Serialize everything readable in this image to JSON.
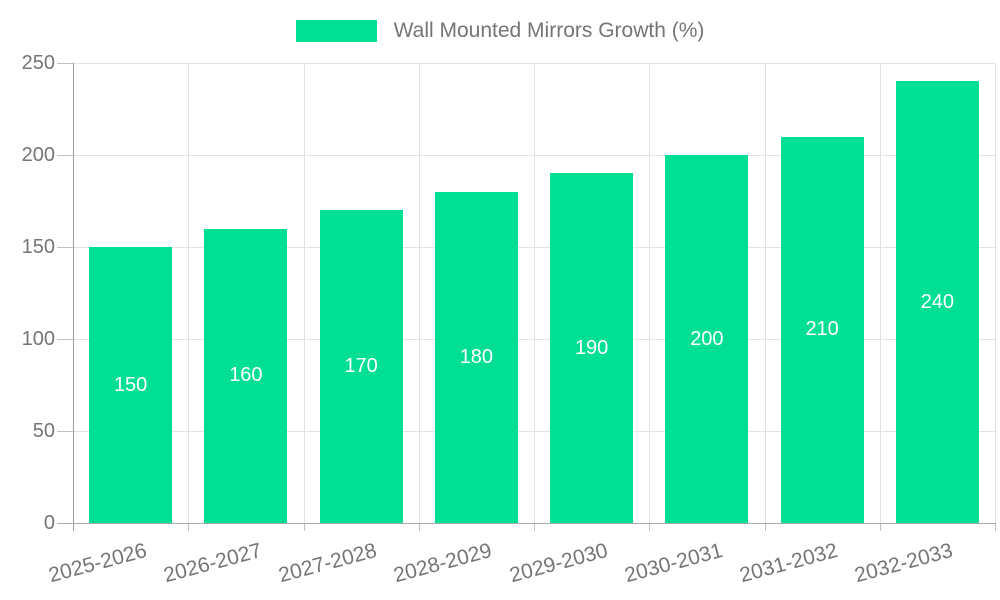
{
  "legend": {
    "label": "Wall Mounted Mirrors Growth (%)"
  },
  "chart_data": {
    "type": "bar",
    "title": "",
    "xlabel": "",
    "ylabel": "",
    "categories": [
      "2025-2026",
      "2026-2027",
      "2027-2028",
      "2028-2029",
      "2029-2030",
      "2030-2031",
      "2031-2032",
      "2032-2033"
    ],
    "series": [
      {
        "name": "Wall Mounted Mirrors Growth (%)",
        "values": [
          150,
          160,
          170,
          180,
          190,
          200,
          210,
          240
        ]
      }
    ],
    "yticks": [
      0,
      50,
      100,
      150,
      200,
      250
    ],
    "ylim": [
      0,
      250
    ],
    "grid": true,
    "legend_position": "top",
    "colors": {
      "bar": "#00DF94",
      "value_label": "#ffffff",
      "axis_text": "#757575",
      "gridline": "#e3e3e3",
      "axis_line": "#9e9e9e"
    }
  }
}
